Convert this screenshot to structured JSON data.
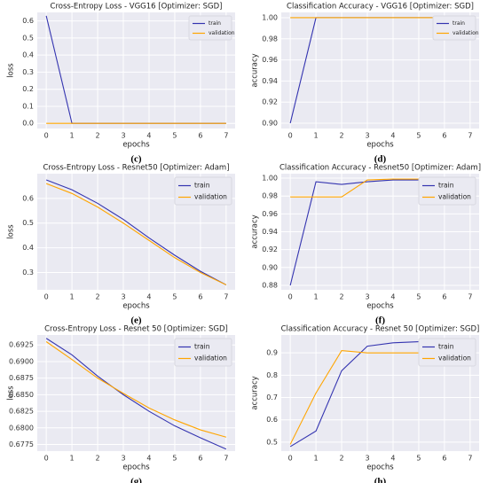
{
  "chart_data": [
    {
      "type": "line",
      "title": "Cross-Entropy Loss - VGG16 [Optimizer: SGD]",
      "x_label": "epochs",
      "y_label": "loss",
      "panel": "(c)",
      "x": [
        0,
        1,
        2,
        3,
        4,
        5,
        6,
        7
      ],
      "xlim": [
        -0.35,
        7.35
      ],
      "xticks": [
        0,
        1,
        2,
        3,
        4,
        5,
        6,
        7
      ],
      "ylim": [
        -0.03,
        0.65
      ],
      "yticks": [
        {
          "value": 0,
          "label": "0.0"
        },
        0.1,
        0.2,
        0.3,
        0.4,
        0.5,
        0.6
      ],
      "grid": true,
      "legend": "upper right",
      "legend_size": "small",
      "series": [
        {
          "name": "train",
          "color": "#3434b0",
          "values": [
            0.63,
            0,
            0,
            0,
            0,
            0,
            0,
            0
          ]
        },
        {
          "name": "validation",
          "color": "#ffa500",
          "values": [
            0,
            0,
            0,
            0,
            0,
            0,
            0,
            0
          ]
        }
      ]
    },
    {
      "type": "line",
      "title": "Classification Accuracy - VGG16 [Optimizer: SGD]",
      "x_label": "epochs",
      "y_label": "accuracy",
      "panel": "(d)",
      "x": [
        0,
        1,
        2,
        3,
        4,
        5,
        6,
        7
      ],
      "xlim": [
        -0.35,
        7.35
      ],
      "xticks": [
        0,
        1,
        2,
        3,
        4,
        5,
        6,
        7
      ],
      "ylim": [
        0.895,
        1.005
      ],
      "yticks": [
        {
          "value": 0.9,
          "label": "0.90"
        },
        0.92,
        0.94,
        0.96,
        0.98,
        {
          "value": 1,
          "label": "1.00"
        }
      ],
      "grid": true,
      "legend": "upper right",
      "legend_size": "small",
      "series": [
        {
          "name": "train",
          "color": "#3434b0",
          "values": [
            0.9,
            1,
            1,
            1,
            1,
            1,
            1,
            1
          ]
        },
        {
          "name": "validation",
          "color": "#ffa500",
          "values": [
            1,
            1,
            1,
            1,
            1,
            1,
            1,
            1
          ]
        }
      ]
    },
    {
      "type": "line",
      "title": "Cross-Entropy Loss - Resnet50 [Optimizer: Adam]",
      "x_label": "epochs",
      "y_label": "loss",
      "panel": "(e)",
      "x": [
        0,
        1,
        2,
        3,
        4,
        5,
        6,
        7
      ],
      "xlim": [
        -0.35,
        7.35
      ],
      "xticks": [
        0,
        1,
        2,
        3,
        4,
        5,
        6,
        7
      ],
      "ylim": [
        0.23,
        0.7
      ],
      "yticks": [
        0.3,
        0.4,
        0.5,
        0.6
      ],
      "grid": true,
      "legend": "upper right",
      "legend_size": "normal",
      "series": [
        {
          "name": "train",
          "color": "#3434b0",
          "values": [
            0.675,
            0.635,
            0.58,
            0.515,
            0.44,
            0.37,
            0.305,
            0.25
          ]
        },
        {
          "name": "validation",
          "color": "#ffa500",
          "values": [
            0.66,
            0.62,
            0.565,
            0.5,
            0.43,
            0.36,
            0.3,
            0.25
          ]
        }
      ]
    },
    {
      "type": "line",
      "title": "Classification Accuracy - Resnet50 [Optimizer: Adam]",
      "x_label": "epochs",
      "y_label": "accuracy",
      "panel": "(f)",
      "x": [
        0,
        1,
        2,
        3,
        4,
        5,
        6
      ],
      "xlim": [
        -0.35,
        7.35
      ],
      "xticks": [
        0,
        1,
        2,
        3,
        4,
        5,
        6,
        7
      ],
      "ylim": [
        0.875,
        1.005
      ],
      "yticks": [
        0.88,
        {
          "value": 0.9,
          "label": "0.90"
        },
        0.92,
        0.94,
        0.96,
        0.98,
        {
          "value": 1,
          "label": "1.00"
        }
      ],
      "grid": true,
      "legend": "upper right",
      "legend_size": "normal",
      "series": [
        {
          "name": "train",
          "color": "#3434b0",
          "values": [
            0.88,
            0.996,
            0.993,
            0.996,
            0.998,
            0.998,
            0.998
          ]
        },
        {
          "name": "validation",
          "color": "#ffa500",
          "values": [
            0.979,
            0.979,
            0.979,
            0.998,
            0.999,
            0.999,
            0.999
          ]
        }
      ]
    },
    {
      "type": "line",
      "title": "Cross-Entropy Loss - Resnet 50 [Optimizer: SGD]",
      "x_label": "epochs",
      "y_label": "loss",
      "panel": "(g)",
      "x": [
        0,
        1,
        2,
        3,
        4,
        5,
        6,
        7
      ],
      "xlim": [
        -0.35,
        7.35
      ],
      "xticks": [
        0,
        1,
        2,
        3,
        4,
        5,
        6,
        7
      ],
      "ylim": [
        0.6765,
        0.694
      ],
      "yticks": [
        0.6775,
        {
          "value": 0.68,
          "label": "0.6800"
        },
        0.6825,
        {
          "value": 0.685,
          "label": "0.6850"
        },
        0.6875,
        {
          "value": 0.69,
          "label": "0.6900"
        },
        0.6925
      ],
      "grid": true,
      "legend": "upper right",
      "legend_size": "normal",
      "series": [
        {
          "name": "train",
          "color": "#3434b0",
          "values": [
            0.6935,
            0.691,
            0.6878,
            0.685,
            0.6825,
            0.6803,
            0.6785,
            0.6768
          ]
        },
        {
          "name": "validation",
          "color": "#ffa500",
          "values": [
            0.693,
            0.6903,
            0.6875,
            0.6852,
            0.683,
            0.6812,
            0.6797,
            0.6786
          ]
        }
      ]
    },
    {
      "type": "line",
      "title": "Classification Accuracy - Resnet 50 [Optimizer: SGD]",
      "x_label": "epochs",
      "y_label": "accuracy",
      "panel": "(h)",
      "x": [
        0,
        1,
        2,
        3,
        4,
        5,
        6
      ],
      "xlim": [
        -0.35,
        7.35
      ],
      "xticks": [
        0,
        1,
        2,
        3,
        4,
        5,
        6,
        7
      ],
      "ylim": [
        0.46,
        0.98
      ],
      "yticks": [
        0.5,
        0.6,
        0.7,
        0.8,
        0.9
      ],
      "grid": true,
      "legend": "upper right",
      "legend_size": "normal",
      "series": [
        {
          "name": "train",
          "color": "#3434b0",
          "values": [
            0.48,
            0.55,
            0.82,
            0.93,
            0.945,
            0.95,
            0.95
          ]
        },
        {
          "name": "validation",
          "color": "#ffa500",
          "values": [
            0.49,
            0.72,
            0.91,
            0.9,
            0.9,
            0.9,
            0.9
          ]
        }
      ]
    }
  ]
}
